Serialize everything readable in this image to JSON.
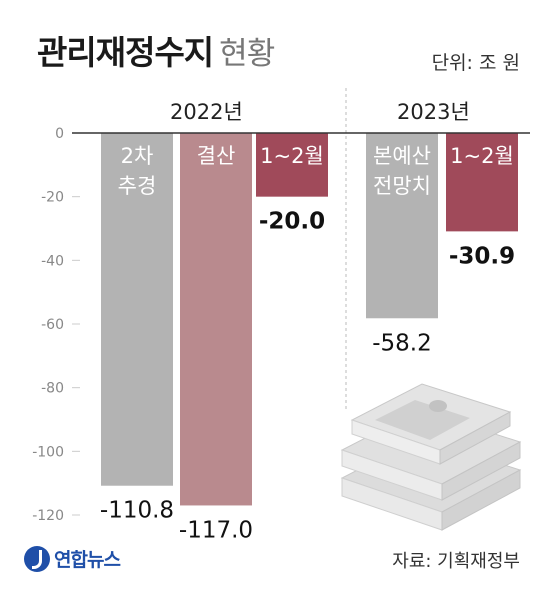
{
  "header": {
    "title": "관리재정수지",
    "subtitle": "현황",
    "unit": "단위: 조 원"
  },
  "groups": [
    "2022년",
    "2023년"
  ],
  "source": "자료: 기획재정부",
  "logo": "연합뉴스",
  "colors": {
    "gray": "#b3b3b3",
    "pink": "#b98a8e",
    "maroon": "#a04a5a",
    "axis": "#333333"
  },
  "chart_data": {
    "type": "bar",
    "ylim": [
      -120,
      0
    ],
    "yticks": [
      0,
      -20,
      -40,
      -60,
      -80,
      -100,
      -120
    ],
    "title": "관리재정수지 현황",
    "bars": [
      {
        "label": [
          "2차",
          "추경"
        ],
        "value": -110.8,
        "value_label": "-110.8",
        "group": "2022년",
        "color": "#b3b3b3",
        "bold": false
      },
      {
        "label": [
          "결산"
        ],
        "value": -117.0,
        "value_label": "-117.0",
        "group": "2022년",
        "color": "#b98a8e",
        "bold": false
      },
      {
        "label": [
          "1~2월"
        ],
        "value": -20.0,
        "value_label": "-20.0",
        "group": "2022년",
        "color": "#a04a5a",
        "bold": true
      },
      {
        "label": [
          "본예산",
          "전망치"
        ],
        "value": -58.2,
        "value_label": "-58.2",
        "group": "2023년",
        "color": "#b3b3b3",
        "bold": false
      },
      {
        "label": [
          "1~2월"
        ],
        "value": -30.9,
        "value_label": "-30.9",
        "group": "2023년",
        "color": "#a04a5a",
        "bold": true
      }
    ]
  }
}
